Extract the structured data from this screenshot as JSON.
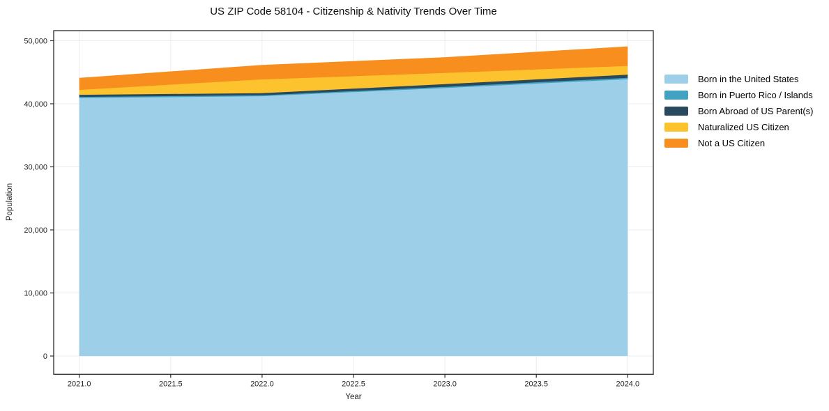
{
  "chart": {
    "title": "US ZIP Code 58104 - Citizenship & Nativity Trends Over Time",
    "xlabel": "Year",
    "ylabel": "Population"
  },
  "chart_data": {
    "type": "area",
    "stacked": true,
    "title": "US ZIP Code 58104 - Citizenship & Nativity Trends Over Time",
    "xlabel": "Year",
    "ylabel": "Population",
    "x": [
      2021,
      2022,
      2023,
      2024
    ],
    "series": [
      {
        "name": "Born in the United States",
        "color": "#9ecfe8",
        "values": [
          40900,
          41200,
          42500,
          43900
        ]
      },
      {
        "name": "Born in Puerto Rico / Islands",
        "color": "#42a2c2",
        "values": [
          190,
          150,
          180,
          220
        ]
      },
      {
        "name": "Born Abroad of US Parent(s)",
        "color": "#294a5e",
        "values": [
          330,
          340,
          430,
          500
        ]
      },
      {
        "name": "Naturalized US Citizen",
        "color": "#fdc32e",
        "values": [
          780,
          2180,
          1770,
          1380
        ]
      },
      {
        "name": "Not a US Citizen",
        "color": "#f78e1e",
        "values": [
          1800,
          2180,
          2400,
          2990
        ]
      }
    ],
    "stacked_totals": [
      44000,
      46050,
      47280,
      48990
    ],
    "xlim": [
      2020.86,
      2024.14
    ],
    "ylim": [
      -2900,
      51600
    ],
    "xticks": [
      {
        "value": 2021.0,
        "label": "2021.0"
      },
      {
        "value": 2021.5,
        "label": "2021.5"
      },
      {
        "value": 2022.0,
        "label": "2022.0"
      },
      {
        "value": 2022.5,
        "label": "2022.5"
      },
      {
        "value": 2023.0,
        "label": "2023.0"
      },
      {
        "value": 2023.5,
        "label": "2023.5"
      },
      {
        "value": 2024.0,
        "label": "2024.0"
      }
    ],
    "yticks": [
      {
        "value": 0,
        "label": "0"
      },
      {
        "value": 10000,
        "label": "10,000"
      },
      {
        "value": 20000,
        "label": "20,000"
      },
      {
        "value": 30000,
        "label": "30,000"
      },
      {
        "value": 40000,
        "label": "40,000"
      },
      {
        "value": 50000,
        "label": "50,000"
      }
    ],
    "grid": true,
    "legend_position": "right"
  },
  "colors": {
    "background": "#ffffff",
    "frame": "#2a2a2a",
    "grid": "#e9edf0",
    "tick_text": "#262626",
    "title_text": "#111111"
  }
}
